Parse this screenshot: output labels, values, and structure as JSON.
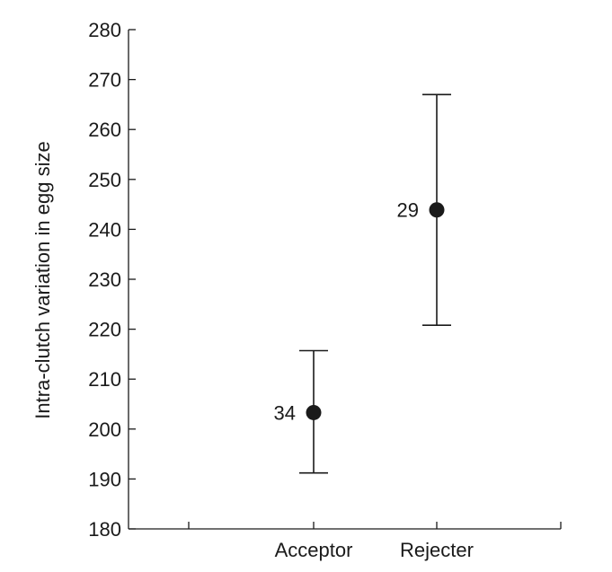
{
  "chart_data": {
    "type": "scatter",
    "title": "",
    "xlabel": "",
    "ylabel": "Intra-clutch variation in egg size",
    "ylim": [
      180,
      280
    ],
    "yticks": [
      180,
      190,
      200,
      210,
      220,
      230,
      240,
      250,
      260,
      270,
      280
    ],
    "categories": [
      "Acceptor",
      "Rejecter"
    ],
    "points": [
      {
        "category": "Acceptor",
        "mean": 203.3,
        "lower": 191.2,
        "upper": 215.7,
        "n": "34"
      },
      {
        "category": "Rejecter",
        "mean": 243.9,
        "lower": 220.8,
        "upper": 267.0,
        "n": "29"
      }
    ],
    "grid": false,
    "legend": "none"
  }
}
